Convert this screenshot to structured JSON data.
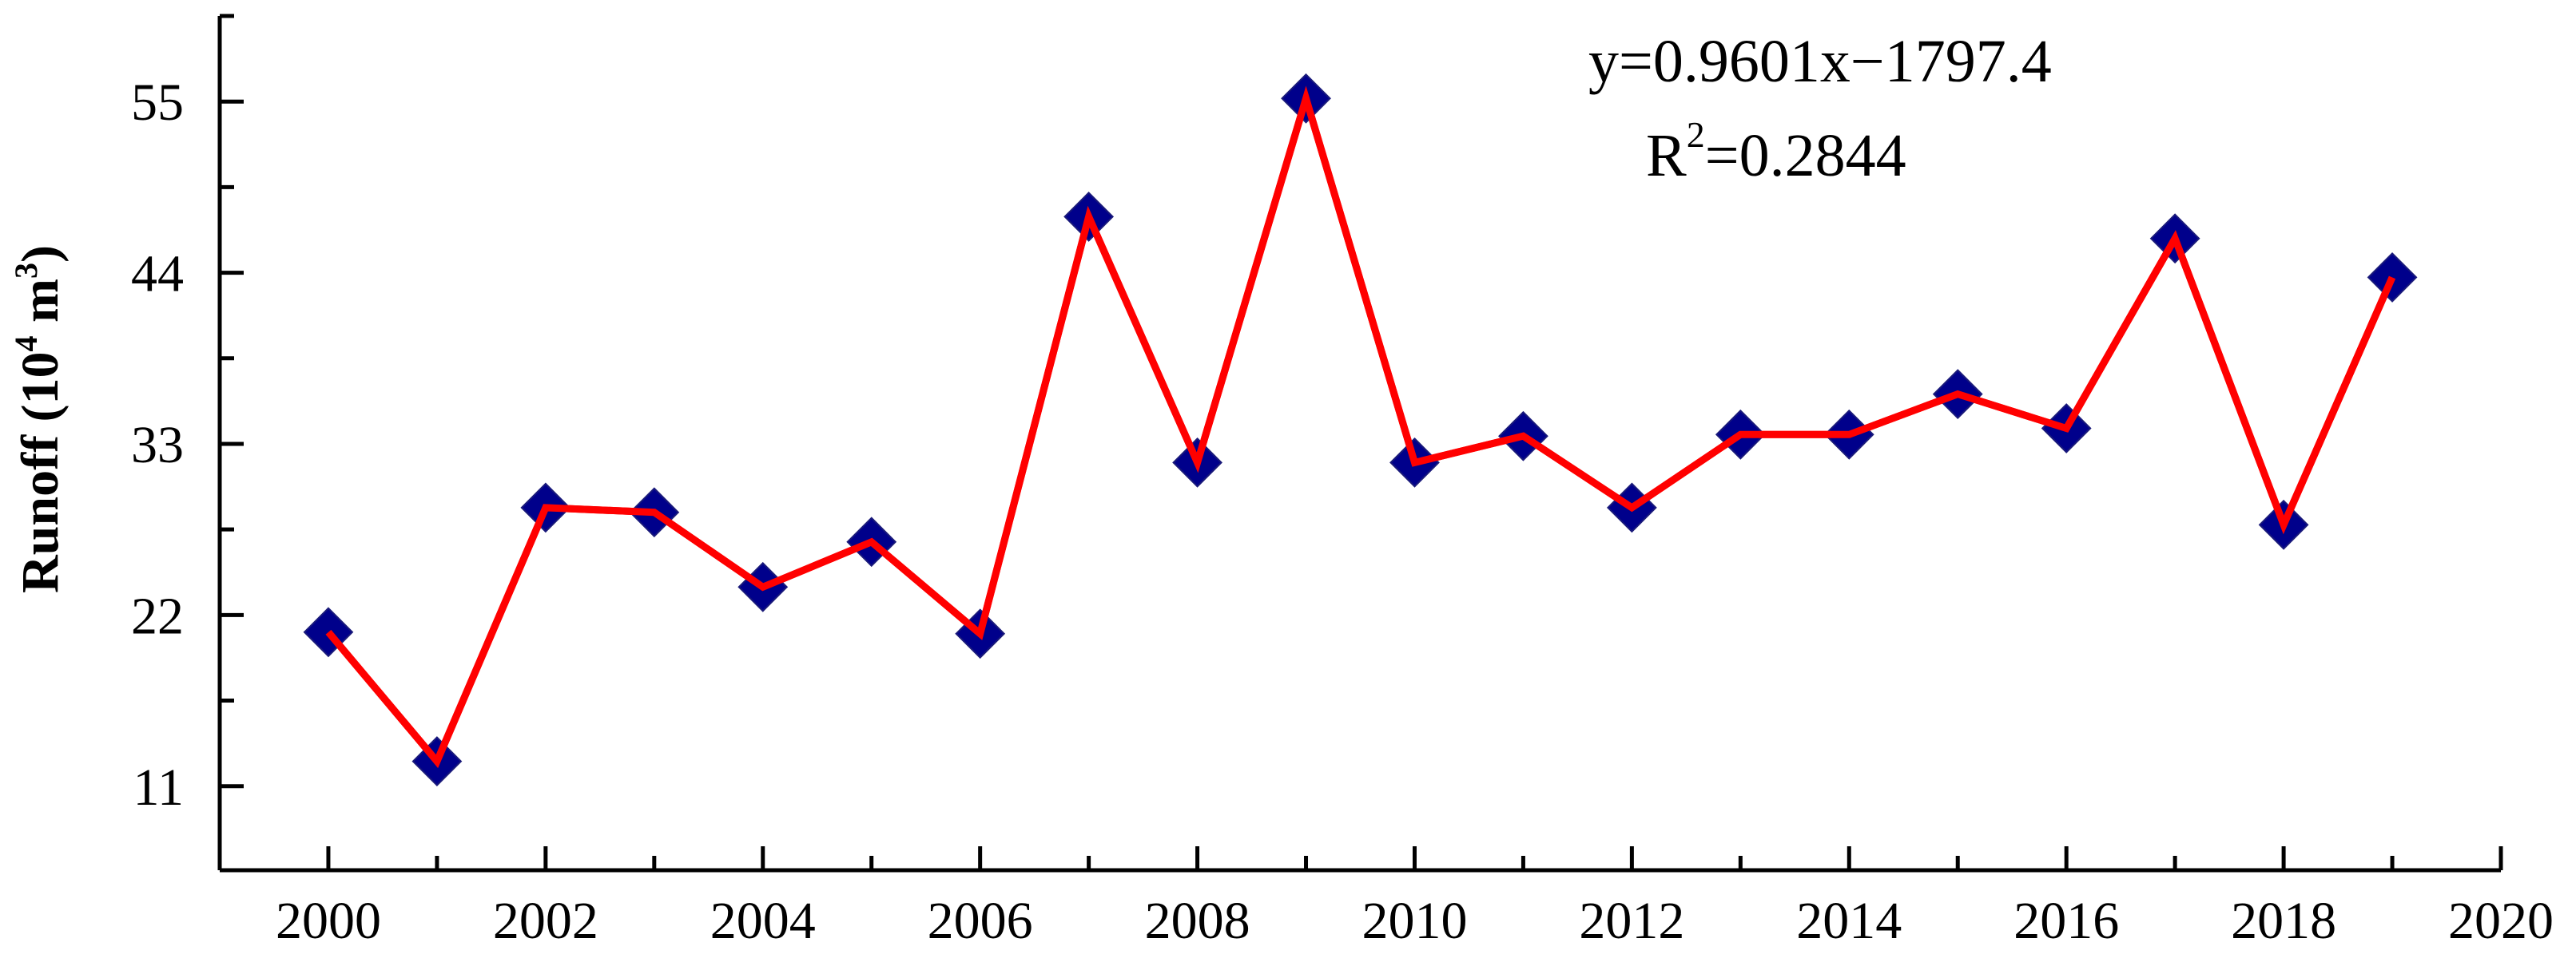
{
  "chart_data": {
    "type": "line",
    "x": [
      2000,
      2001,
      2002,
      2003,
      2004,
      2005,
      2006,
      2007,
      2008,
      2009,
      2010,
      2011,
      2012,
      2013,
      2014,
      2015,
      2016,
      2017,
      2018,
      2019
    ],
    "series": [
      {
        "values": [
          20.9,
          12.6,
          28.9,
          28.6,
          23.8,
          26.7,
          20.8,
          47.6,
          31.8,
          55.2,
          31.8,
          33.5,
          28.9,
          33.6,
          33.6,
          36.2,
          34.0,
          46.2,
          27.8,
          43.7
        ],
        "color": "#ff0000",
        "marker": "diamond",
        "marker_color": "#00008b"
      }
    ],
    "trendline": {
      "style": "dash-dot",
      "color": "#000000",
      "slope": 0.9601,
      "intercept": -1797.4,
      "x_range": [
        2000,
        2019
      ]
    },
    "equation_line1": "y=0.9601x−1797.4",
    "r2_prefix": "R",
    "r2_sup": "2",
    "r2_value": "=0.2844",
    "ylabel_main": "Runoff (10",
    "ylabel_sup1": "4",
    "ylabel_mid": " m",
    "ylabel_sup2": "3",
    "ylabel_end": ")",
    "x_ticks": [
      2000,
      2002,
      2004,
      2006,
      2008,
      2010,
      2012,
      2014,
      2016,
      2018,
      2020
    ],
    "y_ticks": [
      11,
      22,
      33,
      44,
      55
    ],
    "xlim": [
      1999,
      2020
    ],
    "ylim": [
      5.6,
      60.5
    ],
    "grid": false
  }
}
